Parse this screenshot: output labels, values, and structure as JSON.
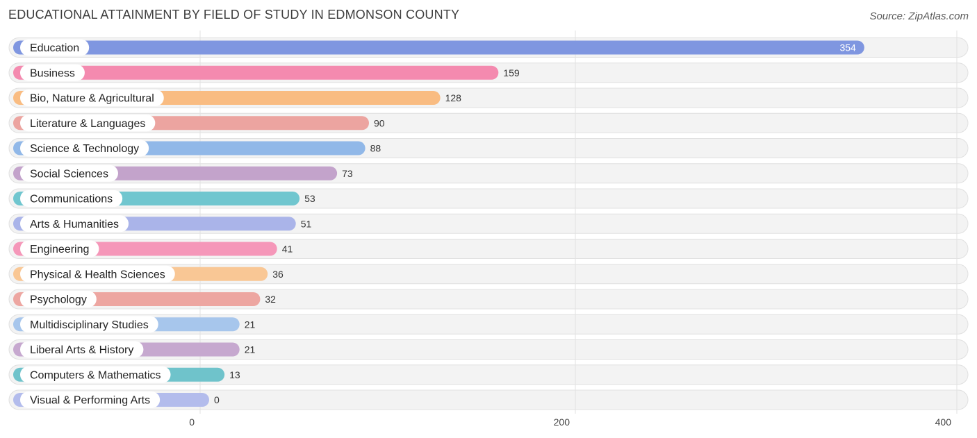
{
  "title": "EDUCATIONAL ATTAINMENT BY FIELD OF STUDY IN EDMONSON COUNTY",
  "source": "Source: ZipAtlas.com",
  "chart_data": {
    "type": "bar",
    "orientation": "horizontal",
    "title": "EDUCATIONAL ATTAINMENT BY FIELD OF STUDY IN EDMONSON COUNTY",
    "xlabel": "",
    "ylabel": "",
    "xlim": [
      0,
      400
    ],
    "xticks": [
      0,
      200,
      400
    ],
    "grid": true,
    "categories": [
      "Education",
      "Business",
      "Bio, Nature & Agricultural",
      "Literature & Languages",
      "Science & Technology",
      "Social Sciences",
      "Communications",
      "Arts & Humanities",
      "Engineering",
      "Physical & Health Sciences",
      "Psychology",
      "Multidisciplinary Studies",
      "Liberal Arts & History",
      "Computers & Mathematics",
      "Visual & Performing Arts"
    ],
    "values": [
      354,
      159,
      128,
      90,
      88,
      73,
      53,
      51,
      41,
      36,
      32,
      21,
      21,
      13,
      0
    ],
    "colors": [
      "#7f96e0",
      "#f48aaf",
      "#f9bc82",
      "#eca4a0",
      "#91b8e8",
      "#c3a3cb",
      "#70c6cf",
      "#aab4e9",
      "#f597b9",
      "#f9c795",
      "#eda6a1",
      "#a7c6ec",
      "#c6a8cf",
      "#6fc3cb",
      "#b3bcec"
    ]
  }
}
